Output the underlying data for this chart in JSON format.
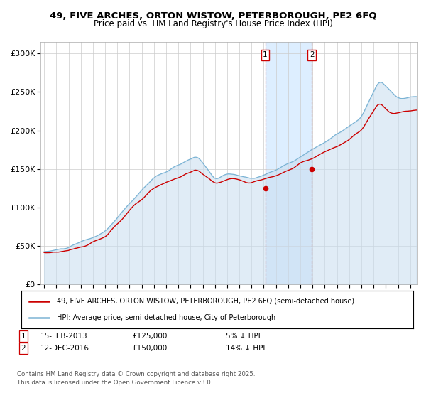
{
  "title1": "49, FIVE ARCHES, ORTON WISTOW, PETERBOROUGH, PE2 6FQ",
  "title2": "Price paid vs. HM Land Registry's House Price Index (HPI)",
  "ytick_values": [
    0,
    50000,
    100000,
    150000,
    200000,
    250000,
    300000
  ],
  "ylim": [
    0,
    315000
  ],
  "xlim_start": 1994.7,
  "xlim_end": 2025.6,
  "purchase1_year": 2013.12,
  "purchase1_price": 125000,
  "purchase1_label": "1",
  "purchase1_date_str": "15-FEB-2013",
  "purchase1_pct": "5% ↓ HPI",
  "purchase2_year": 2016.95,
  "purchase2_price": 150000,
  "purchase2_label": "2",
  "purchase2_date_str": "12-DEC-2016",
  "purchase2_pct": "14% ↓ HPI",
  "hpi_fill_color": "#c8ddf0",
  "hpi_line_color": "#7ab3d4",
  "property_color": "#cc0000",
  "shade_color": "#ddeeff",
  "grid_color": "#cccccc",
  "bg_color": "#ffffff",
  "legend1": "49, FIVE ARCHES, ORTON WISTOW, PETERBOROUGH, PE2 6FQ (semi-detached house)",
  "legend2": "HPI: Average price, semi-detached house, City of Peterborough",
  "footnote": "Contains HM Land Registry data © Crown copyright and database right 2025.\nThis data is licensed under the Open Government Licence v3.0."
}
